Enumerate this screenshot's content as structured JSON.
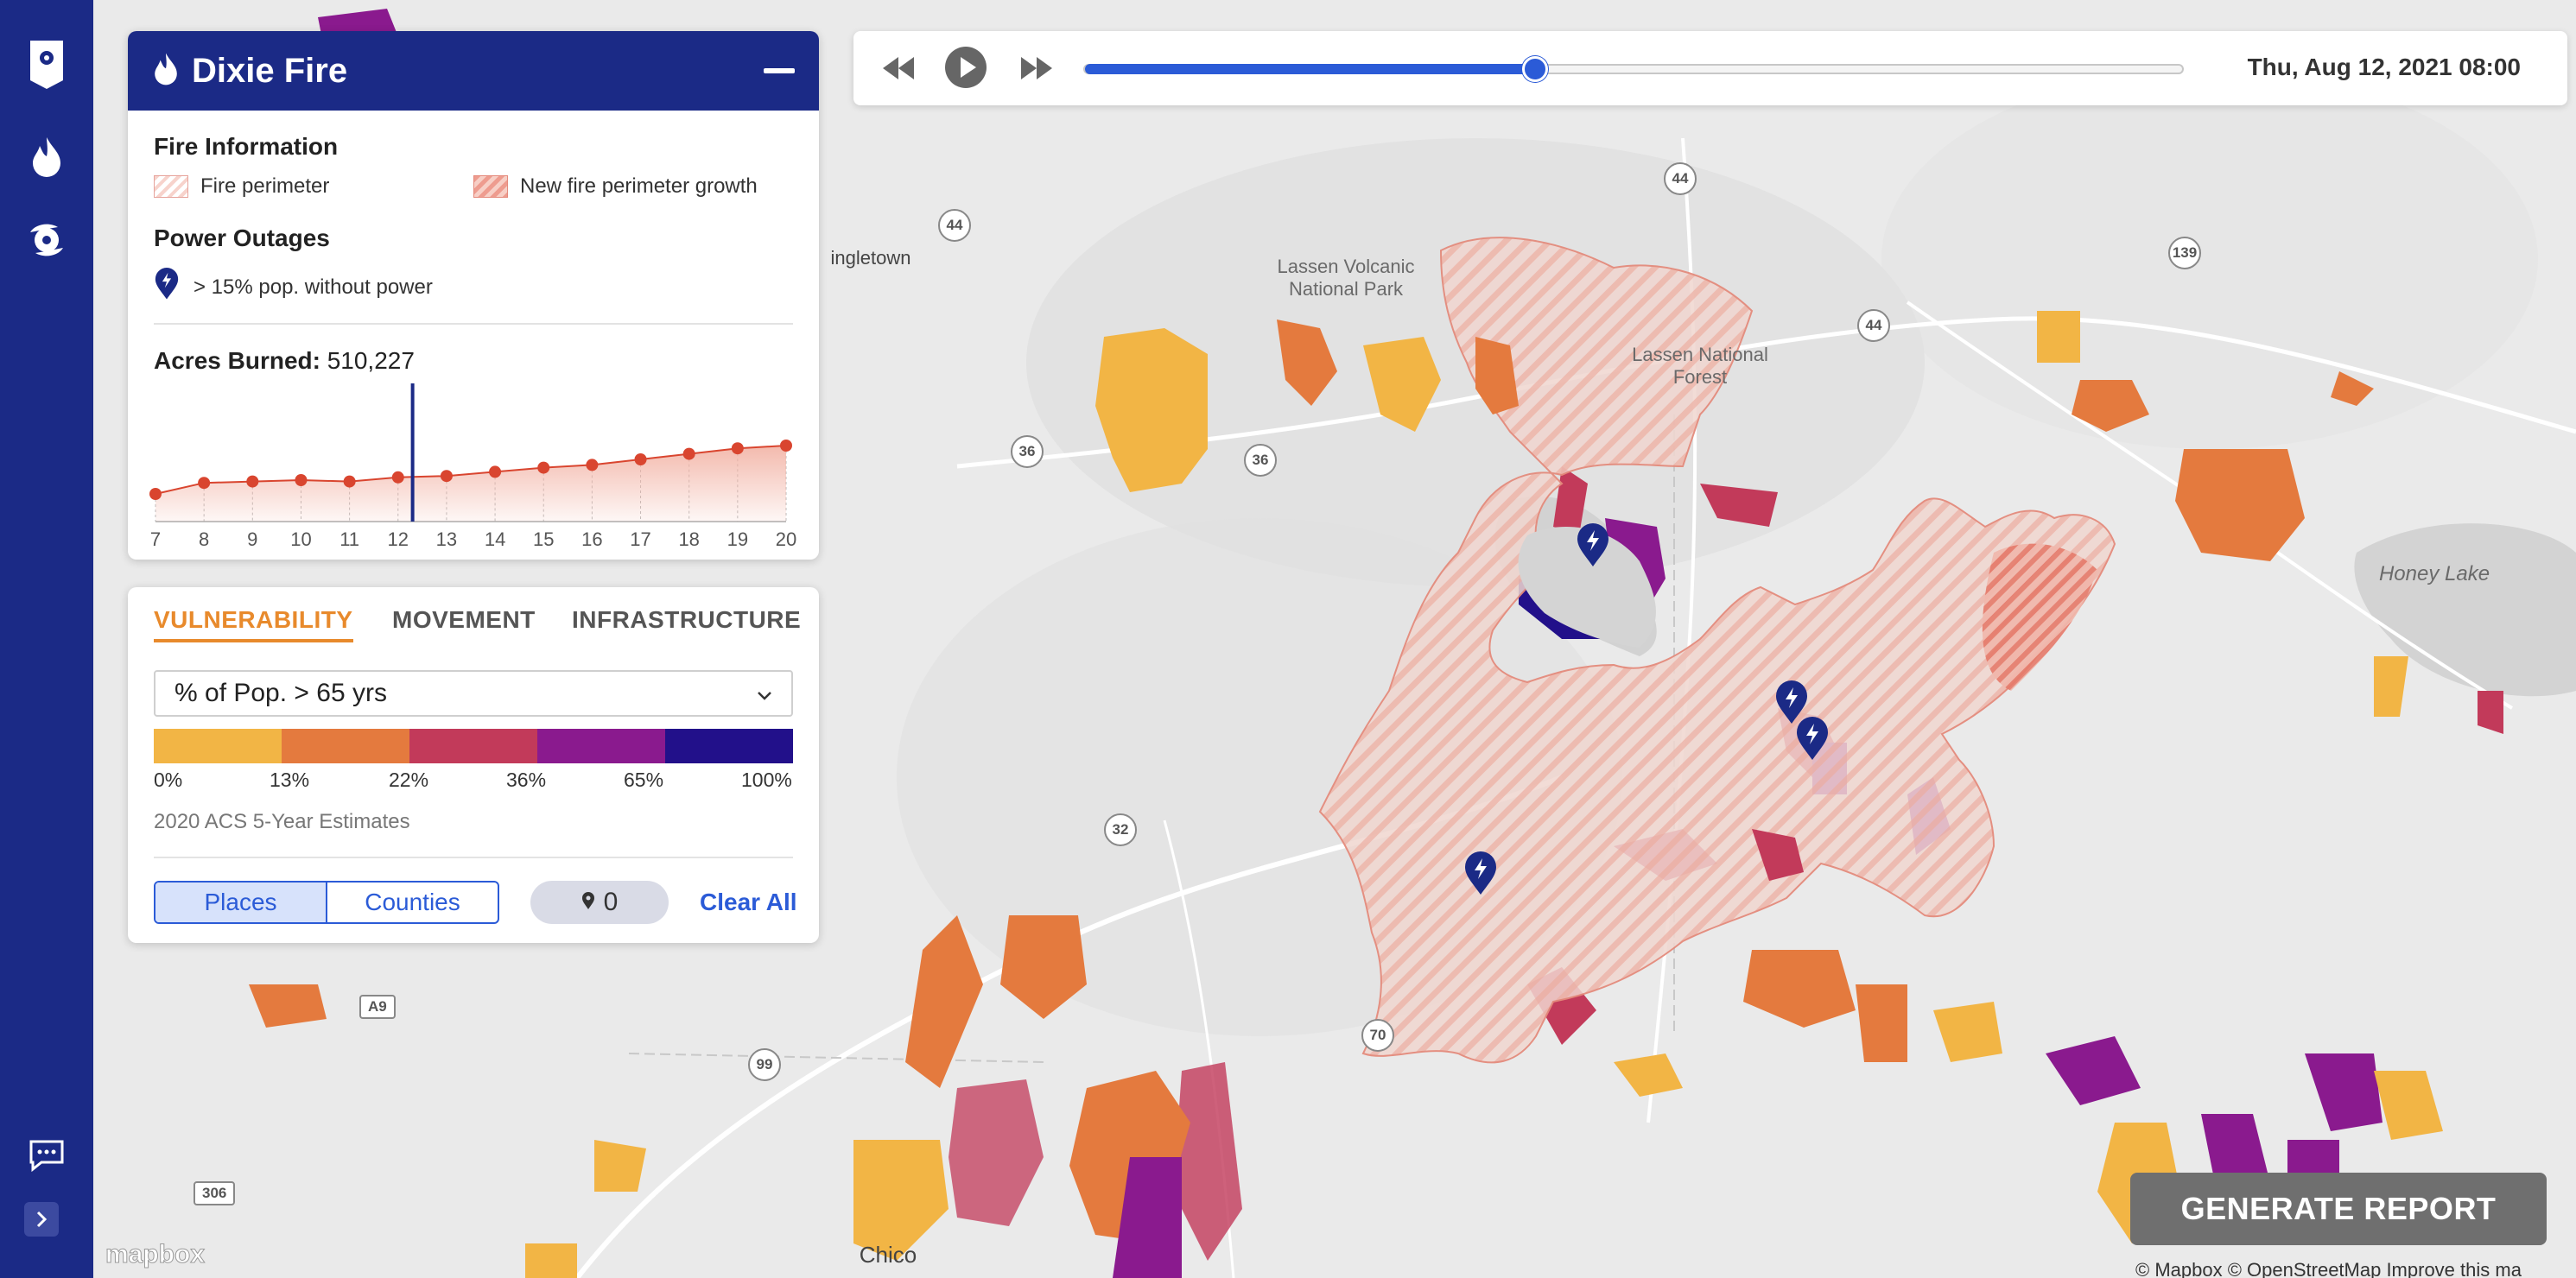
{
  "sidebar": {
    "icons": [
      "location-pin-icon",
      "fire-icon",
      "hurricane-icon",
      "chat-icon",
      "chevron-right-icon"
    ]
  },
  "fire_panel": {
    "title": "Dixie Fire",
    "fire_info_title": "Fire Information",
    "legend_perimeter": "Fire perimeter",
    "legend_growth": "New fire perimeter growth",
    "power_title": "Power Outages",
    "power_legend": "> 15% pop. without power",
    "acres_label": "Acres Burned:",
    "acres_value": "510,227"
  },
  "chart_data": {
    "type": "line",
    "title": "",
    "xlabel": "",
    "ylabel": "",
    "x": [
      "7",
      "8",
      "9",
      "10",
      "11",
      "12",
      "13",
      "14",
      "15",
      "16",
      "17",
      "18",
      "19",
      "20"
    ],
    "values": [
      0.2,
      0.28,
      0.29,
      0.3,
      0.29,
      0.32,
      0.33,
      0.36,
      0.39,
      0.41,
      0.45,
      0.49,
      0.53,
      0.55
    ],
    "ylim": [
      0,
      1
    ],
    "selected_x": "12.3",
    "colors": {
      "line": "#d9452f",
      "fill": "#f2b2a4",
      "marker": "#1b2a86"
    }
  },
  "vulnerability": {
    "tabs": [
      "VULNERABILITY",
      "MOVEMENT",
      "INFRASTRUCTURE"
    ],
    "selected_metric": "% of Pop. > 65 yrs",
    "scale_colors": [
      "#f2b545",
      "#e47a3e",
      "#c23a5a",
      "#8a1a8e",
      "#22108a"
    ],
    "scale_ticks": [
      "0%",
      "13%",
      "22%",
      "36%",
      "65%",
      "100%"
    ],
    "source": "2020 ACS 5-Year Estimates",
    "toggle_places": "Places",
    "toggle_counties": "Counties",
    "pin_count": "0",
    "clear_all": "Clear All"
  },
  "timeline": {
    "datetime": "Thu, Aug 12, 2021 08:00",
    "progress": 0.41
  },
  "map": {
    "labels": {
      "lassen_volcanic": "Lassen Volcanic\nNational Park",
      "lassen_forest": "Lassen National\nForest",
      "honey_lake": "Honey Lake",
      "chico": "Chico",
      "ingletown": "ingletown"
    },
    "routes": [
      "44",
      "44",
      "44",
      "139",
      "36",
      "36",
      "32",
      "70",
      "99",
      "A9",
      "306"
    ]
  },
  "generate_report": "GENERATE REPORT",
  "attribution": "© Mapbox © OpenStreetMap  Improve this ma",
  "mapbox_logo": "mapbox"
}
